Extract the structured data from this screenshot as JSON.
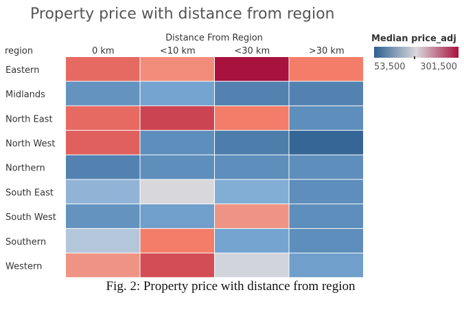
{
  "chart_data": {
    "type": "heatmap",
    "title": "Property price with distance from region",
    "column_group_label": "Distance From Region",
    "row_header": "region",
    "columns": [
      "0 km",
      "<10 km",
      "<30 km",
      ">30 km"
    ],
    "rows": [
      "Eastern",
      "Midlands",
      "North East",
      "North West",
      "Northern",
      "South East",
      "South West",
      "Southern",
      "Western"
    ],
    "values": [
      [
        255000,
        235000,
        301500,
        245000
      ],
      [
        100000,
        115000,
        85000,
        85000
      ],
      [
        255000,
        275000,
        245000,
        95000
      ],
      [
        260000,
        95000,
        80000,
        60000
      ],
      [
        85000,
        95000,
        95000,
        95000
      ],
      [
        135000,
        185000,
        125000,
        95000
      ],
      [
        100000,
        110000,
        230000,
        95000
      ],
      [
        160000,
        245000,
        115000,
        95000
      ],
      [
        230000,
        270000,
        180000,
        110000
      ]
    ],
    "legend": {
      "title": "Median price_adj",
      "min_label": "53,500",
      "max_label": "301,500",
      "min": 53500,
      "max": 301500,
      "mid": 185000,
      "colors": {
        "low": "#2f5f8f",
        "mid": "#d8d8dc",
        "high": "#a8123e"
      }
    }
  },
  "caption": "Fig. 2: Property price with distance from region"
}
